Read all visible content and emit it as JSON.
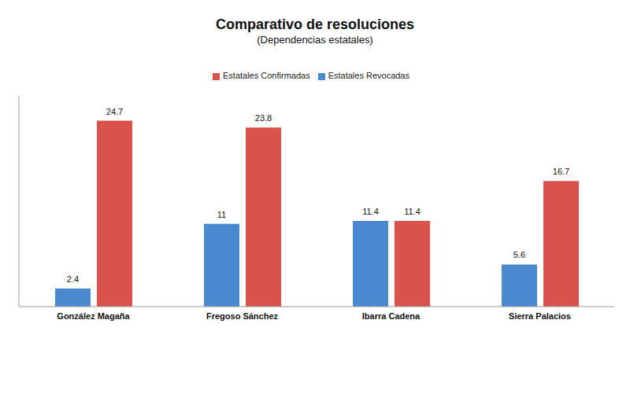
{
  "chart_data": {
    "type": "bar",
    "title": "Comparativo de resoluciones",
    "subtitle": "(Dependencias estatales)",
    "categories": [
      "González Magaña",
      "Fregoso Sánchez",
      "Ibarra Cadena",
      "Sierra Palacios"
    ],
    "series": [
      {
        "name": "Estatales Revocadas",
        "color": "#4a89cf",
        "values": [
          2.4,
          11,
          11.4,
          5.6
        ]
      },
      {
        "name": "Estatales Confirmadas",
        "color": "#d9534c",
        "values": [
          24.7,
          23.8,
          11.4,
          16.7
        ]
      }
    ],
    "ylim": [
      0,
      28
    ],
    "legend": "top",
    "data_labels": true,
    "tick_labels": "x",
    "grid": false
  }
}
